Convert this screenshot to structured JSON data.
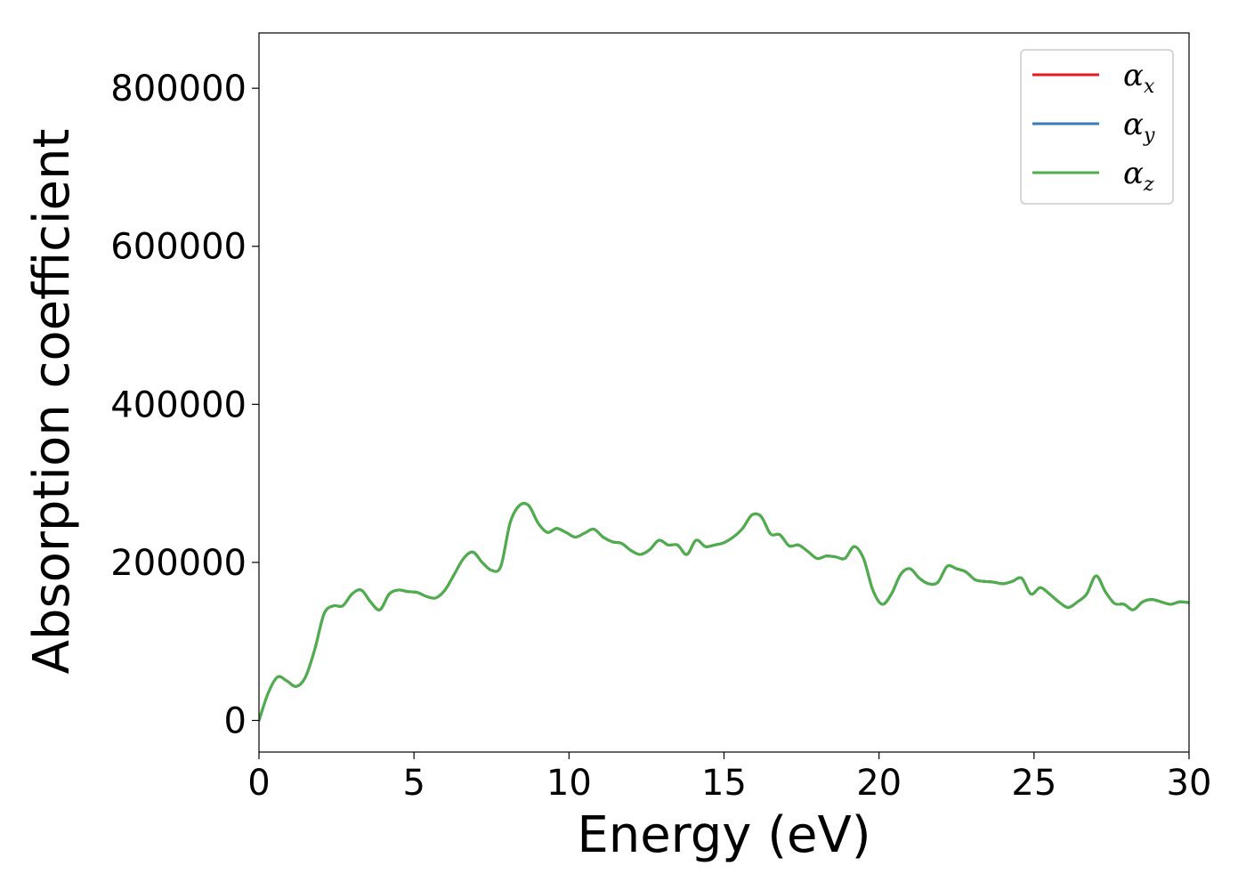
{
  "chart_data": {
    "type": "line",
    "title": "",
    "xlabel": "Energy (eV)",
    "ylabel": "Absorption coefficient",
    "xlim": [
      0,
      30
    ],
    "ylim": [
      -40000,
      870000
    ],
    "x_ticks": [
      0,
      5,
      10,
      15,
      20,
      25,
      30
    ],
    "y_ticks": [
      0,
      200000,
      400000,
      600000,
      800000
    ],
    "x_tick_labels": [
      "0",
      "5",
      "10",
      "15",
      "20",
      "25",
      "30"
    ],
    "y_tick_labels": [
      "0",
      "200000",
      "400000",
      "600000",
      "800000"
    ],
    "grid": false,
    "legend_position": "top-right",
    "series": [
      {
        "symbol": "α",
        "subscript": "x",
        "color": "#e41a1c",
        "x": [
          0,
          0.3,
          0.6,
          0.9,
          1.2,
          1.5,
          1.8,
          2.1,
          2.4,
          2.7,
          3.0,
          3.3,
          3.6,
          3.9,
          4.2,
          4.5,
          4.8,
          5.1,
          5.4,
          5.7,
          6.0,
          6.3,
          6.6,
          6.9,
          7.2,
          7.5,
          7.8,
          8.1,
          8.4,
          8.7,
          9.0,
          9.3,
          9.6,
          9.9,
          10.2,
          10.5,
          10.8,
          11.1,
          11.4,
          11.7,
          12.0,
          12.3,
          12.6,
          12.9,
          13.2,
          13.5,
          13.8,
          14.1,
          14.4,
          14.7,
          15.0,
          15.3,
          15.6,
          15.9,
          16.2,
          16.5,
          16.8,
          17.1,
          17.4,
          17.7,
          18.0,
          18.3,
          18.6,
          18.9,
          19.2,
          19.5,
          19.8,
          20.1,
          20.4,
          20.7,
          21.0,
          21.3,
          21.6,
          21.9,
          22.2,
          22.5,
          22.8,
          23.1,
          23.4,
          23.7,
          24.0,
          24.3,
          24.6,
          24.9,
          25.2,
          25.5,
          25.8,
          26.1,
          26.4,
          26.7,
          27.0,
          27.3,
          27.6,
          27.9,
          28.2,
          28.5,
          28.8,
          29.1,
          29.4,
          29.7,
          30.0
        ],
        "values": [
          0,
          35000,
          55000,
          50000,
          43000,
          55000,
          90000,
          135000,
          145000,
          145000,
          160000,
          165000,
          150000,
          140000,
          160000,
          165000,
          163000,
          162000,
          157000,
          155000,
          165000,
          185000,
          205000,
          213000,
          200000,
          190000,
          195000,
          250000,
          272000,
          272000,
          250000,
          238000,
          243000,
          238000,
          232000,
          237000,
          242000,
          232000,
          226000,
          224000,
          215000,
          210000,
          216000,
          228000,
          222000,
          222000,
          210000,
          228000,
          220000,
          222000,
          225000,
          232000,
          243000,
          260000,
          258000,
          236000,
          235000,
          221000,
          222000,
          214000,
          205000,
          208000,
          207000,
          205000,
          220000,
          205000,
          165000,
          147000,
          160000,
          185000,
          192000,
          180000,
          173000,
          175000,
          195000,
          192000,
          188000,
          178000,
          176000,
          175000,
          173000,
          176000,
          180000,
          160000,
          168000,
          160000,
          150000,
          143000,
          150000,
          160000,
          183000,
          163000,
          148000,
          147000,
          140000,
          150000,
          153000,
          150000,
          147000,
          150000,
          149000
        ]
      },
      {
        "symbol": "α",
        "subscript": "y",
        "color": "#377eb8",
        "x": [
          0,
          0.3,
          0.6,
          0.9,
          1.2,
          1.5,
          1.8,
          2.1,
          2.4,
          2.7,
          3.0,
          3.3,
          3.6,
          3.9,
          4.2,
          4.5,
          4.8,
          5.1,
          5.4,
          5.7,
          6.0,
          6.3,
          6.6,
          6.9,
          7.2,
          7.5,
          7.8,
          8.1,
          8.4,
          8.7,
          9.0,
          9.3,
          9.6,
          9.9,
          10.2,
          10.5,
          10.8,
          11.1,
          11.4,
          11.7,
          12.0,
          12.3,
          12.6,
          12.9,
          13.2,
          13.5,
          13.8,
          14.1,
          14.4,
          14.7,
          15.0,
          15.3,
          15.6,
          15.9,
          16.2,
          16.5,
          16.8,
          17.1,
          17.4,
          17.7,
          18.0,
          18.3,
          18.6,
          18.9,
          19.2,
          19.5,
          19.8,
          20.1,
          20.4,
          20.7,
          21.0,
          21.3,
          21.6,
          21.9,
          22.2,
          22.5,
          22.8,
          23.1,
          23.4,
          23.7,
          24.0,
          24.3,
          24.6,
          24.9,
          25.2,
          25.5,
          25.8,
          26.1,
          26.4,
          26.7,
          27.0,
          27.3,
          27.6,
          27.9,
          28.2,
          28.5,
          28.8,
          29.1,
          29.4,
          29.7,
          30.0
        ],
        "values": [
          0,
          35000,
          55000,
          50000,
          43000,
          55000,
          90000,
          135000,
          145000,
          145000,
          160000,
          165000,
          150000,
          140000,
          160000,
          165000,
          163000,
          162000,
          157000,
          155000,
          165000,
          185000,
          205000,
          213000,
          200000,
          190000,
          195000,
          250000,
          272000,
          272000,
          250000,
          238000,
          243000,
          238000,
          232000,
          237000,
          242000,
          232000,
          226000,
          224000,
          215000,
          210000,
          216000,
          228000,
          222000,
          222000,
          210000,
          228000,
          220000,
          222000,
          225000,
          232000,
          243000,
          260000,
          258000,
          236000,
          235000,
          221000,
          222000,
          214000,
          205000,
          208000,
          207000,
          205000,
          220000,
          205000,
          165000,
          147000,
          160000,
          185000,
          192000,
          180000,
          173000,
          175000,
          195000,
          192000,
          188000,
          178000,
          176000,
          175000,
          173000,
          176000,
          180000,
          160000,
          168000,
          160000,
          150000,
          143000,
          150000,
          160000,
          183000,
          163000,
          148000,
          147000,
          140000,
          150000,
          153000,
          150000,
          147000,
          150000,
          149000
        ]
      },
      {
        "symbol": "α",
        "subscript": "z",
        "color": "#4daf4a",
        "x": [
          0,
          0.3,
          0.6,
          0.9,
          1.2,
          1.5,
          1.8,
          2.1,
          2.4,
          2.7,
          3.0,
          3.3,
          3.6,
          3.9,
          4.2,
          4.5,
          4.8,
          5.1,
          5.4,
          5.7,
          6.0,
          6.3,
          6.6,
          6.9,
          7.2,
          7.5,
          7.8,
          8.1,
          8.4,
          8.7,
          9.0,
          9.3,
          9.6,
          9.9,
          10.2,
          10.5,
          10.8,
          11.1,
          11.4,
          11.7,
          12.0,
          12.3,
          12.6,
          12.9,
          13.2,
          13.5,
          13.8,
          14.1,
          14.4,
          14.7,
          15.0,
          15.3,
          15.6,
          15.9,
          16.2,
          16.5,
          16.8,
          17.1,
          17.4,
          17.7,
          18.0,
          18.3,
          18.6,
          18.9,
          19.2,
          19.5,
          19.8,
          20.1,
          20.4,
          20.7,
          21.0,
          21.3,
          21.6,
          21.9,
          22.2,
          22.5,
          22.8,
          23.1,
          23.4,
          23.7,
          24.0,
          24.3,
          24.6,
          24.9,
          25.2,
          25.5,
          25.8,
          26.1,
          26.4,
          26.7,
          27.0,
          27.3,
          27.6,
          27.9,
          28.2,
          28.5,
          28.8,
          29.1,
          29.4,
          29.7,
          30.0
        ],
        "values": [
          0,
          35000,
          55000,
          50000,
          43000,
          55000,
          90000,
          135000,
          145000,
          145000,
          160000,
          165000,
          150000,
          140000,
          160000,
          165000,
          163000,
          162000,
          157000,
          155000,
          165000,
          185000,
          205000,
          213000,
          200000,
          190000,
          195000,
          250000,
          272000,
          272000,
          250000,
          238000,
          243000,
          238000,
          232000,
          237000,
          242000,
          232000,
          226000,
          224000,
          215000,
          210000,
          216000,
          228000,
          222000,
          222000,
          210000,
          228000,
          220000,
          222000,
          225000,
          232000,
          243000,
          260000,
          258000,
          236000,
          235000,
          221000,
          222000,
          214000,
          205000,
          208000,
          207000,
          205000,
          220000,
          205000,
          165000,
          147000,
          160000,
          185000,
          192000,
          180000,
          173000,
          175000,
          195000,
          192000,
          188000,
          178000,
          176000,
          175000,
          173000,
          176000,
          180000,
          160000,
          168000,
          160000,
          150000,
          143000,
          150000,
          160000,
          183000,
          163000,
          148000,
          147000,
          140000,
          150000,
          153000,
          150000,
          147000,
          150000,
          149000
        ]
      }
    ]
  }
}
